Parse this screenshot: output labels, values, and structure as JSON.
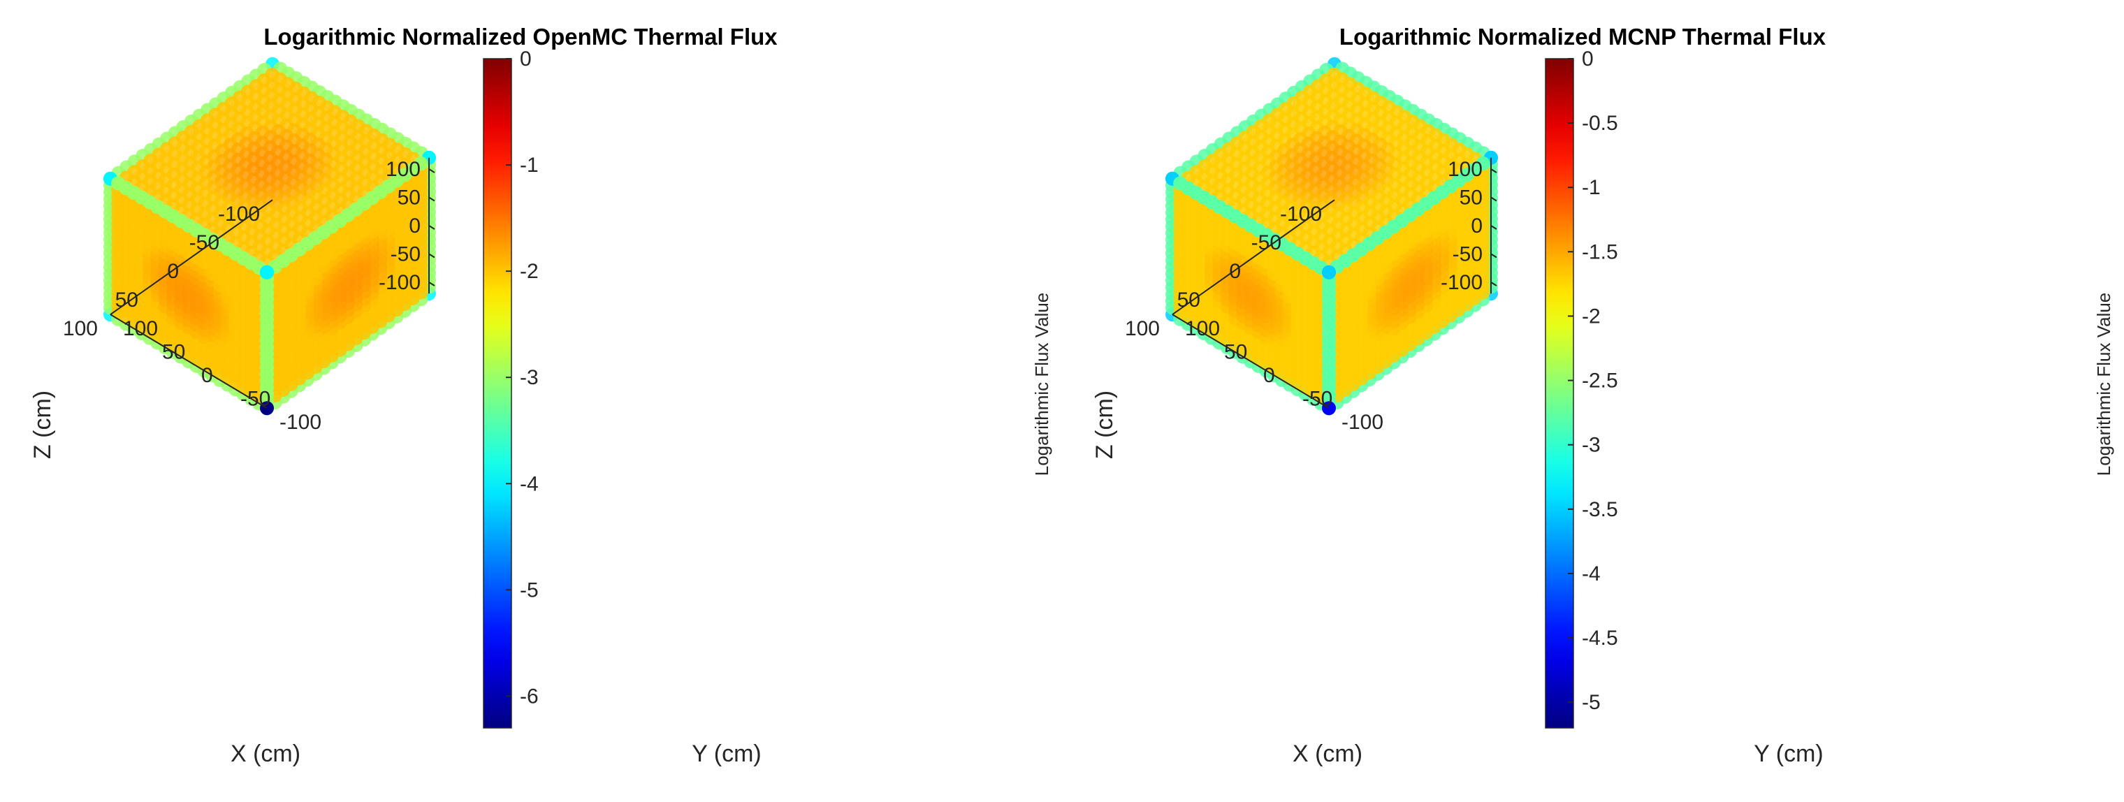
{
  "colormap": "jet",
  "chart_data": [
    {
      "type": "scatter3d",
      "title": "Logarithmic Normalized OpenMC Thermal Flux",
      "xlabel": "X (cm)",
      "ylabel": "Y (cm)",
      "zlabel": "Z (cm)",
      "x_ticks": [
        "100",
        "50",
        "0",
        "-50",
        "-100"
      ],
      "y_ticks": [
        "-100",
        "-50",
        "0",
        "50",
        "100"
      ],
      "z_ticks": [
        "100",
        "50",
        "0",
        "-50",
        "-100"
      ],
      "xlim": [
        -100,
        100
      ],
      "ylim": [
        -100,
        100
      ],
      "zlim": [
        -120,
        120
      ],
      "colorbar": {
        "label": "Logarithmic Flux Value",
        "ticks": [
          "0",
          "-1",
          "-2",
          "-3",
          "-4",
          "-5",
          "-6"
        ],
        "range": [
          -6.3,
          0
        ]
      },
      "flux_center_max": -0.9,
      "flux_surface_value": -2.0,
      "flux_edge_value": -3.0,
      "flux_corner_min": -4.0,
      "darkest_point_value": -6.3,
      "grid_points_per_axis": 21
    },
    {
      "type": "scatter3d",
      "title": "Logarithmic Normalized MCNP Thermal Flux",
      "xlabel": "X (cm)",
      "ylabel": "Y (cm)",
      "zlabel": "Z (cm)",
      "x_ticks": [
        "100",
        "50",
        "0",
        "-50",
        "-100"
      ],
      "y_ticks": [
        "-100",
        "-50",
        "0",
        "50",
        "100"
      ],
      "z_ticks": [
        "100",
        "50",
        "0",
        "-50",
        "-100"
      ],
      "xlim": [
        -100,
        100
      ],
      "ylim": [
        -100,
        100
      ],
      "zlim": [
        -120,
        120
      ],
      "colorbar": {
        "label": "Logarithmic Flux Value",
        "ticks": [
          "0",
          "-0.5",
          "-1",
          "-1.5",
          "-2",
          "-2.5",
          "-3",
          "-3.5",
          "-4",
          "-4.5",
          "-5"
        ],
        "range": [
          -5.2,
          0
        ]
      },
      "flux_center_max": -0.8,
      "flux_surface_value": -1.7,
      "flux_edge_value": -2.8,
      "flux_corner_min": -3.5,
      "darkest_point_value": -4.6,
      "grid_points_per_axis": 21
    }
  ]
}
